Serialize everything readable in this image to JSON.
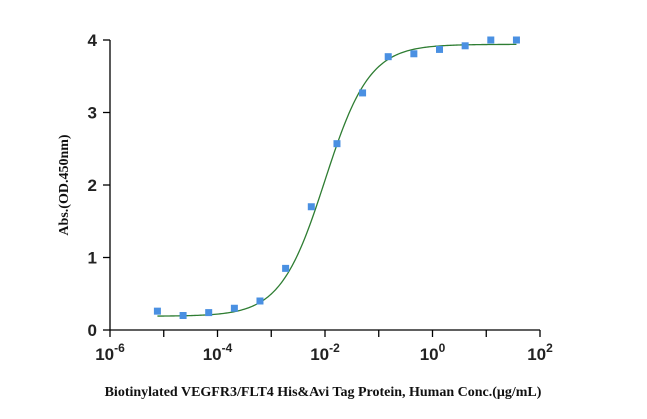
{
  "chart_data": {
    "type": "scatter",
    "title": "",
    "xlabel": "Biotinylated VEGFR3/FLT4 His&Avi Tag Protein, Human Conc.(μg/mL)",
    "ylabel": "Abs.(OD.450nm)",
    "x_scale": "log",
    "xlim": [
      1e-06,
      100
    ],
    "ylim": [
      0,
      4
    ],
    "x_ticks": [
      {
        "base": "10",
        "exp": "-6"
      },
      {
        "base": "10",
        "exp": "-4"
      },
      {
        "base": "10",
        "exp": "-2"
      },
      {
        "base": "10",
        "exp": "0"
      },
      {
        "base": "10",
        "exp": "2"
      }
    ],
    "y_ticks": [
      "0",
      "1",
      "2",
      "3",
      "4"
    ],
    "grid": false,
    "series": [
      {
        "marker": "square",
        "color": "#4a90e2",
        "points": [
          {
            "x": 7.62e-06,
            "y": 0.26
          },
          {
            "x": 2.29e-05,
            "y": 0.2
          },
          {
            "x": 6.86e-05,
            "y": 0.24
          },
          {
            "x": 0.000206,
            "y": 0.3
          },
          {
            "x": 0.000617,
            "y": 0.4
          },
          {
            "x": 0.00185,
            "y": 0.85
          },
          {
            "x": 0.00556,
            "y": 1.7
          },
          {
            "x": 0.0167,
            "y": 2.57
          },
          {
            "x": 0.05,
            "y": 3.27
          },
          {
            "x": 0.15,
            "y": 3.77
          },
          {
            "x": 0.45,
            "y": 3.81
          },
          {
            "x": 1.35,
            "y": 3.87
          },
          {
            "x": 4.05,
            "y": 3.92
          },
          {
            "x": 12.15,
            "y": 4.0
          },
          {
            "x": 36.45,
            "y": 4.0
          }
        ]
      }
    ],
    "fit_curve": {
      "type": "4PL",
      "color": "#2e7d32",
      "bottom": 0.19,
      "top": 3.94,
      "ec50": 0.01,
      "hill": 1.05
    }
  }
}
